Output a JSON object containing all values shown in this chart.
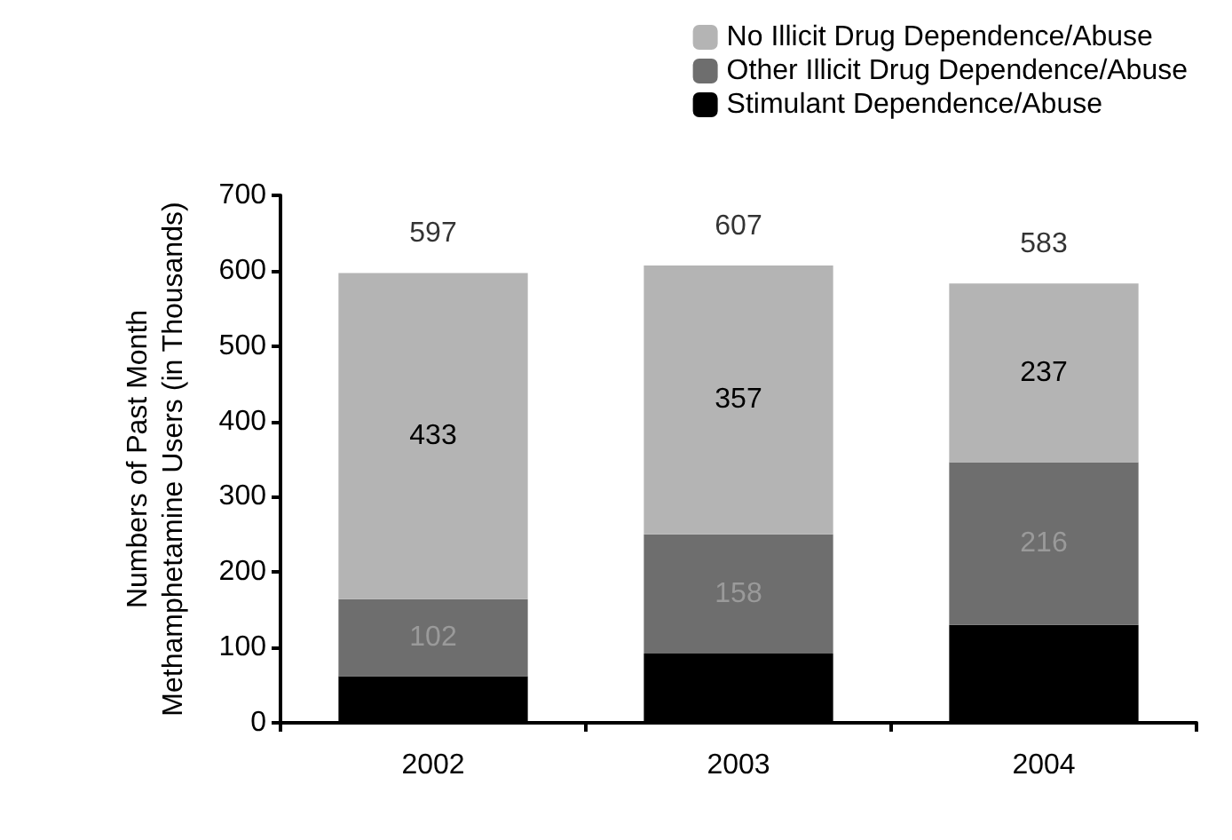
{
  "chart_data": {
    "type": "bar",
    "stacked": true,
    "ylabel": "Numbers of Past Month\nMethamphetamine Users (in Thousands)",
    "categories": [
      "2002",
      "2003",
      "2004"
    ],
    "series": [
      {
        "name": "Stimulant Dependence/Abuse",
        "color": "#000000",
        "values": [
          62,
          92,
          130
        ]
      },
      {
        "name": "Other Illicit Drug Dependence/Abuse",
        "color": "#6e6e6e",
        "values": [
          102,
          158,
          216
        ],
        "value_labels": [
          "102",
          "158",
          "216"
        ]
      },
      {
        "name": "No Illicit Drug Dependence/Abuse",
        "color": "#b4b4b4",
        "values": [
          433,
          357,
          237
        ],
        "value_labels": [
          "433",
          "357",
          "237"
        ]
      }
    ],
    "totals": [
      "597",
      "607",
      "583"
    ],
    "ylim": [
      0,
      700
    ],
    "yticks": [
      0,
      100,
      200,
      300,
      400,
      500,
      600,
      700
    ],
    "grid": false,
    "legend": "top right"
  }
}
